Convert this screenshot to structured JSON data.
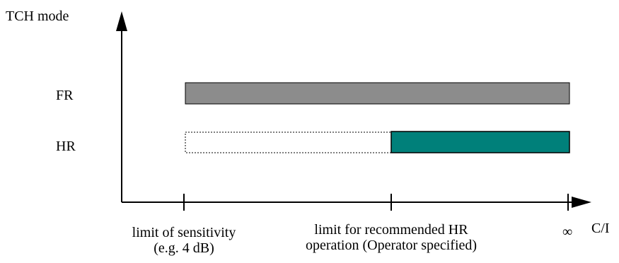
{
  "diagram": {
    "y_axis_label": "TCH mode",
    "x_axis_label": "C/I",
    "rows": [
      {
        "label": "FR"
      },
      {
        "label": "HR"
      }
    ],
    "ticks": [
      {
        "line1": "limit of sensitivity",
        "line2": "(e.g. 4 dB)"
      },
      {
        "line1": "limit for recommended HR",
        "line2": "operation (Operator specified)"
      },
      {
        "line1": "∞"
      }
    ],
    "colors": {
      "fr_bar": "#8c8c8c",
      "hr_bar": "#00807a",
      "hr_region_outline": "dotted"
    }
  }
}
